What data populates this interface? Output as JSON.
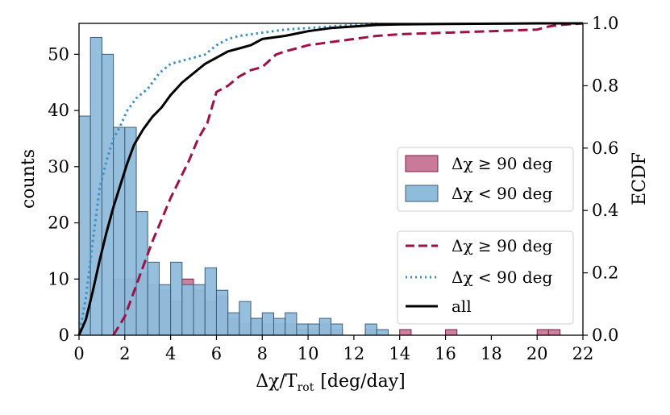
{
  "chart_data": {
    "type": "bar",
    "bin_width": 0.5,
    "xlim": [
      0,
      22
    ],
    "ylim": [
      0,
      55.5
    ],
    "y2lim": [
      0,
      1.0
    ],
    "xticks": [
      "0",
      "2",
      "4",
      "6",
      "8",
      "10",
      "12",
      "14",
      "16",
      "18",
      "20",
      "22"
    ],
    "yticks": [
      "0",
      "10",
      "20",
      "30",
      "40",
      "50"
    ],
    "y2ticks": [
      "0.0",
      "0.2",
      "0.4",
      "0.6",
      "0.8",
      "1.0"
    ],
    "xlabel_main": "Δχ/T",
    "xlabel_sub": "rot",
    "xlabel_unit": "[deg/day]",
    "ylabel": "counts",
    "y2label": "ECDF",
    "hist_series": [
      {
        "name": "Δχ ≥ 90 deg",
        "color": "#c97a99",
        "edge": "#7a1f45",
        "bin_starts": [
          1.5,
          2.0,
          2.5,
          3.0,
          3.5,
          4.0,
          4.5,
          5.0,
          5.5,
          6.0,
          6.5,
          7.0,
          7.5,
          8.0,
          8.5,
          9.0,
          9.5,
          10.0,
          10.5,
          11.0,
          12.5,
          14.0,
          16.0,
          20.0,
          20.5
        ],
        "values": [
          10,
          10,
          11,
          9,
          8,
          6,
          10,
          8,
          6,
          7,
          3,
          2,
          3,
          2,
          2,
          2,
          1,
          1,
          2,
          1,
          1,
          1,
          1,
          1,
          1
        ]
      },
      {
        "name": "Δχ < 90 deg",
        "color": "#8fbcdb",
        "edge": "#3b5f7a",
        "bin_starts": [
          0.0,
          0.5,
          1.0,
          1.5,
          2.0,
          2.5,
          3.0,
          3.5,
          4.0,
          4.5,
          5.0,
          5.5,
          6.0,
          6.5,
          7.0,
          7.5,
          8.0,
          8.5,
          9.0,
          9.5,
          10.0,
          10.5,
          11.0,
          12.5,
          13.0
        ],
        "values": [
          39,
          53,
          50,
          37,
          37,
          22,
          13,
          9,
          13,
          9,
          9,
          12,
          8,
          4,
          6,
          3,
          4,
          3,
          4,
          2,
          2,
          3,
          2,
          2,
          1
        ]
      }
    ],
    "ecdf_series": [
      {
        "name": "Δχ ≥ 90 deg",
        "style": "dashed",
        "color": "#9e1048",
        "x": [
          1.5,
          2.0,
          2.4,
          2.8,
          3.2,
          3.6,
          4.0,
          4.4,
          4.8,
          5.2,
          5.6,
          6.0,
          6.5,
          7.0,
          7.5,
          8.0,
          8.6,
          9.0,
          9.5,
          10.0,
          11.0,
          12.0,
          13.0,
          14.0,
          16.0,
          18.0,
          20.0,
          20.5,
          21.0,
          22.0
        ],
        "y": [
          0.0,
          0.06,
          0.14,
          0.22,
          0.3,
          0.37,
          0.44,
          0.5,
          0.56,
          0.63,
          0.68,
          0.78,
          0.8,
          0.83,
          0.85,
          0.86,
          0.9,
          0.91,
          0.92,
          0.93,
          0.94,
          0.95,
          0.96,
          0.965,
          0.97,
          0.975,
          0.98,
          0.99,
          0.995,
          1.0
        ]
      },
      {
        "name": "Δχ < 90 deg",
        "style": "dotted",
        "color": "#3b8fc4",
        "x": [
          0.0,
          0.3,
          0.6,
          0.9,
          1.2,
          1.5,
          1.8,
          2.1,
          2.5,
          3.0,
          3.5,
          4.0,
          4.5,
          5.0,
          5.5,
          6.0,
          6.5,
          7.0,
          8.0,
          9.0,
          10.0,
          11.0,
          12.0,
          13.0
        ],
        "y": [
          0.0,
          0.12,
          0.3,
          0.47,
          0.56,
          0.63,
          0.67,
          0.72,
          0.76,
          0.79,
          0.84,
          0.87,
          0.88,
          0.89,
          0.9,
          0.93,
          0.95,
          0.96,
          0.97,
          0.98,
          0.985,
          0.99,
          0.995,
          1.0
        ]
      },
      {
        "name": "all",
        "style": "solid",
        "color": "#000000",
        "x": [
          0.0,
          0.3,
          0.6,
          0.9,
          1.2,
          1.5,
          1.8,
          2.1,
          2.4,
          2.8,
          3.2,
          3.6,
          4.0,
          4.5,
          5.0,
          5.5,
          6.0,
          6.5,
          7.0,
          7.5,
          8.0,
          9.0,
          10.0,
          11.0,
          12.0,
          13.0,
          14.0,
          16.0,
          18.0,
          20.0,
          22.0
        ],
        "y": [
          0.0,
          0.05,
          0.14,
          0.24,
          0.33,
          0.41,
          0.48,
          0.55,
          0.61,
          0.66,
          0.7,
          0.73,
          0.77,
          0.81,
          0.84,
          0.87,
          0.89,
          0.91,
          0.92,
          0.93,
          0.95,
          0.96,
          0.975,
          0.985,
          0.99,
          0.995,
          0.997,
          0.998,
          0.999,
          1.0,
          1.0
        ]
      }
    ],
    "hist_legend": [
      "Δχ ≥ 90 deg",
      "Δχ < 90 deg"
    ],
    "line_legend": [
      "Δχ ≥ 90 deg",
      "Δχ < 90 deg",
      "all"
    ]
  }
}
